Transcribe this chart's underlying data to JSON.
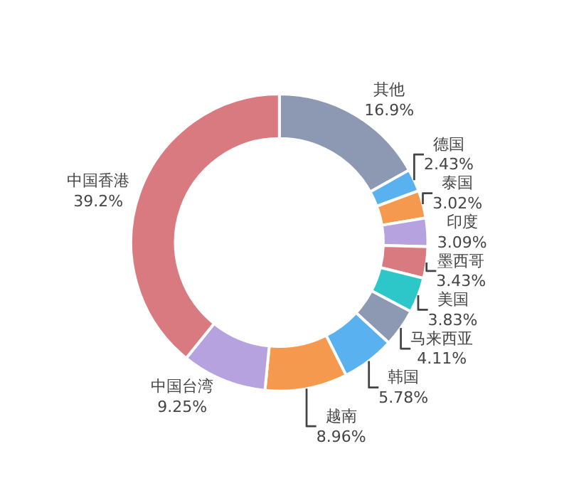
{
  "chart_data": {
    "type": "donut",
    "categories": [
      "其他",
      "德国",
      "泰国",
      "印度",
      "墨西哥",
      "美国",
      "马来西亚",
      "韩国",
      "越南",
      "中国台湾",
      "中国香港"
    ],
    "values": [
      16.9,
      2.43,
      3.02,
      3.09,
      3.43,
      3.83,
      4.11,
      5.78,
      8.96,
      9.25,
      39.2
    ],
    "value_labels": [
      "16.9%",
      "2.43%",
      "3.02%",
      "3.09%",
      "3.43%",
      "3.83%",
      "4.11%",
      "5.78%",
      "8.96%",
      "9.25%",
      "39.2%"
    ],
    "colors": [
      "#8d98b3",
      "#5ab1ef",
      "#f5994e",
      "#b6a2de",
      "#d87a80",
      "#2ec7c9",
      "#8d98b3",
      "#5ab1ef",
      "#f5994e",
      "#b6a2de",
      "#d87a80"
    ],
    "legend": false
  }
}
